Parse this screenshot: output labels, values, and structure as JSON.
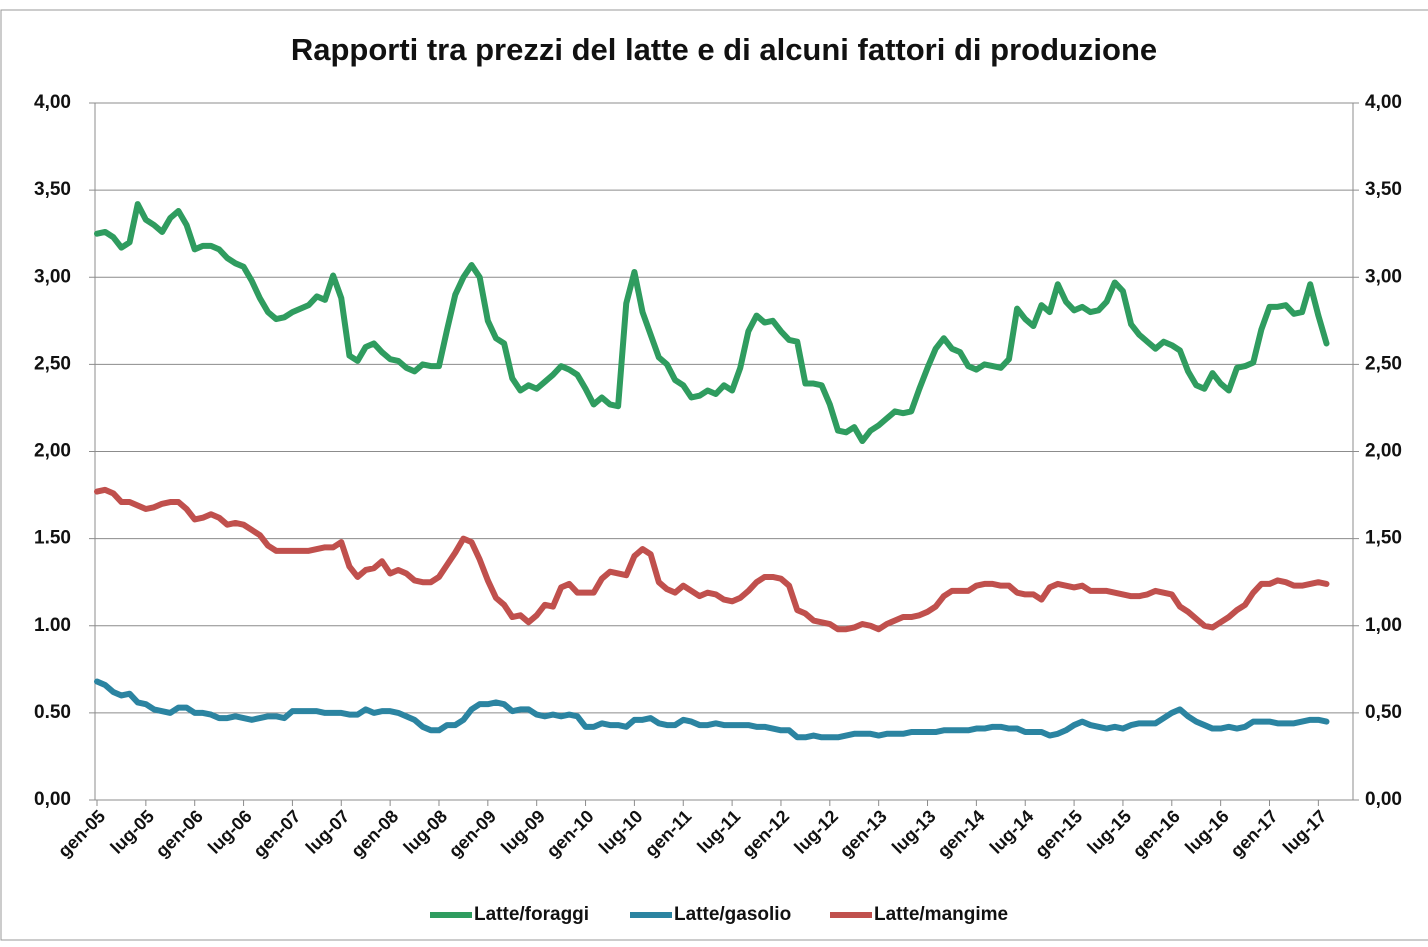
{
  "chart_data": {
    "type": "line",
    "title": "Rapporti tra prezzi del latte e di alcuni fattori di produzione",
    "categories": [
      "gen-05",
      null,
      null,
      null,
      null,
      null,
      "lug-05",
      null,
      null,
      null,
      null,
      null,
      "gen-06",
      null,
      null,
      null,
      null,
      null,
      "lug-06",
      null,
      null,
      null,
      null,
      null,
      "gen-07",
      null,
      null,
      null,
      null,
      null,
      "lug-07",
      null,
      null,
      null,
      null,
      null,
      "gen-08",
      null,
      null,
      null,
      null,
      null,
      "lug-08",
      null,
      null,
      null,
      null,
      null,
      "gen-09",
      null,
      null,
      null,
      null,
      null,
      "lug-09",
      null,
      null,
      null,
      null,
      null,
      "gen-10",
      null,
      null,
      null,
      null,
      null,
      "lug-10",
      null,
      null,
      null,
      null,
      null,
      "gen-11",
      null,
      null,
      null,
      null,
      null,
      "lug-11",
      null,
      null,
      null,
      null,
      null,
      "gen-12",
      null,
      null,
      null,
      null,
      null,
      "lug-12",
      null,
      null,
      null,
      null,
      null,
      "gen-13",
      null,
      null,
      null,
      null,
      null,
      "lug-13",
      null,
      null,
      null,
      null,
      null,
      "gen-14",
      null,
      null,
      null,
      null,
      null,
      "lug-14",
      null,
      null,
      null,
      null,
      null,
      "gen-15",
      null,
      null,
      null,
      null,
      null,
      "lug-15",
      null,
      null,
      null,
      null,
      null,
      "gen-16",
      null,
      null,
      null,
      null,
      null,
      "lug-16",
      null,
      null,
      null,
      null,
      null,
      "gen-17",
      null,
      null,
      null,
      null,
      null,
      "lug-17",
      null
    ],
    "series": [
      {
        "name": "Latte/foraggi",
        "color": "#2f9c5f",
        "values": [
          3.25,
          3.26,
          3.23,
          3.17,
          3.2,
          3.42,
          3.33,
          3.3,
          3.26,
          3.34,
          3.38,
          3.3,
          3.16,
          3.18,
          3.18,
          3.16,
          3.11,
          3.08,
          3.06,
          2.98,
          2.88,
          2.8,
          2.76,
          2.77,
          2.8,
          2.82,
          2.84,
          2.89,
          2.87,
          3.01,
          2.88,
          2.55,
          2.52,
          2.6,
          2.62,
          2.57,
          2.53,
          2.52,
          2.48,
          2.46,
          2.5,
          2.49,
          2.49,
          2.7,
          2.9,
          3.0,
          3.07,
          3.0,
          2.75,
          2.65,
          2.62,
          2.42,
          2.35,
          2.38,
          2.36,
          2.4,
          2.44,
          2.49,
          2.47,
          2.44,
          2.36,
          2.27,
          2.31,
          2.27,
          2.26,
          2.85,
          3.03,
          2.8,
          2.67,
          2.54,
          2.5,
          2.41,
          2.38,
          2.31,
          2.32,
          2.35,
          2.33,
          2.38,
          2.35,
          2.48,
          2.69,
          2.78,
          2.74,
          2.75,
          2.69,
          2.64,
          2.63,
          2.39,
          2.39,
          2.38,
          2.27,
          2.12,
          2.11,
          2.14,
          2.06,
          2.12,
          2.15,
          2.19,
          2.23,
          2.22,
          2.23,
          2.36,
          2.48,
          2.59,
          2.65,
          2.59,
          2.57,
          2.49,
          2.47,
          2.5,
          2.49,
          2.48,
          2.53,
          2.82,
          2.76,
          2.72,
          2.84,
          2.8,
          2.96,
          2.86,
          2.81,
          2.83,
          2.8,
          2.81,
          2.86,
          2.97,
          2.92,
          2.73,
          2.67,
          2.63,
          2.59,
          2.63,
          2.61,
          2.58,
          2.46,
          2.38,
          2.36,
          2.45,
          2.39,
          2.35,
          2.48,
          2.49,
          2.51,
          2.7,
          2.83,
          2.83,
          2.84,
          2.79,
          2.8,
          2.96,
          2.78,
          2.62
        ]
      },
      {
        "name": "Latte/gasolio",
        "color": "#2b84a1",
        "values": [
          0.68,
          0.66,
          0.62,
          0.6,
          0.61,
          0.56,
          0.55,
          0.52,
          0.51,
          0.5,
          0.53,
          0.53,
          0.5,
          0.5,
          0.49,
          0.47,
          0.47,
          0.48,
          0.47,
          0.46,
          0.47,
          0.48,
          0.48,
          0.47,
          0.51,
          0.51,
          0.51,
          0.51,
          0.5,
          0.5,
          0.5,
          0.49,
          0.49,
          0.52,
          0.5,
          0.51,
          0.51,
          0.5,
          0.48,
          0.46,
          0.42,
          0.4,
          0.4,
          0.43,
          0.43,
          0.46,
          0.52,
          0.55,
          0.55,
          0.56,
          0.55,
          0.51,
          0.52,
          0.52,
          0.49,
          0.48,
          0.49,
          0.48,
          0.49,
          0.48,
          0.42,
          0.42,
          0.44,
          0.43,
          0.43,
          0.42,
          0.46,
          0.46,
          0.47,
          0.44,
          0.43,
          0.43,
          0.46,
          0.45,
          0.43,
          0.43,
          0.44,
          0.43,
          0.43,
          0.43,
          0.43,
          0.42,
          0.42,
          0.41,
          0.4,
          0.4,
          0.36,
          0.36,
          0.37,
          0.36,
          0.36,
          0.36,
          0.37,
          0.38,
          0.38,
          0.38,
          0.37,
          0.38,
          0.38,
          0.38,
          0.39,
          0.39,
          0.39,
          0.39,
          0.4,
          0.4,
          0.4,
          0.4,
          0.41,
          0.41,
          0.42,
          0.42,
          0.41,
          0.41,
          0.39,
          0.39,
          0.39,
          0.37,
          0.38,
          0.4,
          0.43,
          0.45,
          0.43,
          0.42,
          0.41,
          0.42,
          0.41,
          0.43,
          0.44,
          0.44,
          0.44,
          0.47,
          0.5,
          0.52,
          0.48,
          0.45,
          0.43,
          0.41,
          0.41,
          0.42,
          0.41,
          0.42,
          0.45,
          0.45,
          0.45,
          0.44,
          0.44,
          0.44,
          0.45,
          0.46,
          0.46,
          0.45
        ]
      },
      {
        "name": "Latte/mangime",
        "color": "#c0504d",
        "values": [
          1.77,
          1.78,
          1.76,
          1.71,
          1.71,
          1.69,
          1.67,
          1.68,
          1.7,
          1.71,
          1.71,
          1.67,
          1.61,
          1.62,
          1.64,
          1.62,
          1.58,
          1.59,
          1.58,
          1.55,
          1.52,
          1.46,
          1.43,
          1.43,
          1.43,
          1.43,
          1.43,
          1.44,
          1.45,
          1.45,
          1.48,
          1.34,
          1.28,
          1.32,
          1.33,
          1.37,
          1.3,
          1.32,
          1.3,
          1.26,
          1.25,
          1.25,
          1.28,
          1.35,
          1.42,
          1.5,
          1.48,
          1.38,
          1.26,
          1.16,
          1.12,
          1.05,
          1.06,
          1.02,
          1.06,
          1.12,
          1.11,
          1.22,
          1.24,
          1.19,
          1.19,
          1.19,
          1.27,
          1.31,
          1.3,
          1.29,
          1.4,
          1.44,
          1.41,
          1.25,
          1.21,
          1.19,
          1.23,
          1.2,
          1.17,
          1.19,
          1.18,
          1.15,
          1.14,
          1.16,
          1.2,
          1.25,
          1.28,
          1.28,
          1.27,
          1.23,
          1.09,
          1.07,
          1.03,
          1.02,
          1.01,
          0.98,
          0.98,
          0.99,
          1.01,
          1.0,
          0.98,
          1.01,
          1.03,
          1.05,
          1.05,
          1.06,
          1.08,
          1.11,
          1.17,
          1.2,
          1.2,
          1.2,
          1.23,
          1.24,
          1.24,
          1.23,
          1.23,
          1.19,
          1.18,
          1.18,
          1.15,
          1.22,
          1.24,
          1.23,
          1.22,
          1.23,
          1.2,
          1.2,
          1.2,
          1.19,
          1.18,
          1.17,
          1.17,
          1.18,
          1.2,
          1.19,
          1.18,
          1.11,
          1.08,
          1.04,
          1.0,
          0.99,
          1.02,
          1.05,
          1.09,
          1.12,
          1.19,
          1.24,
          1.24,
          1.26,
          1.25,
          1.23,
          1.23,
          1.24,
          1.25,
          1.24
        ]
      }
    ],
    "ylim": [
      0,
      4
    ],
    "yticks": [
      {
        "value": 0,
        "label": "0,00"
      },
      {
        "value": 0.5,
        "label": "0.50"
      },
      {
        "value": 1,
        "label": "1.00"
      },
      {
        "value": 1.5,
        "label": "1.50"
      },
      {
        "value": 2,
        "label": "2,00"
      },
      {
        "value": 2.5,
        "label": "2,50"
      },
      {
        "value": 3,
        "label": "3,00"
      },
      {
        "value": 3.5,
        "label": "3,50"
      },
      {
        "value": 4,
        "label": "4,00"
      }
    ],
    "y2lim": [
      0,
      4
    ],
    "y2ticks": [
      {
        "value": 0,
        "label": "0,00"
      },
      {
        "value": 0.5,
        "label": "0,50"
      },
      {
        "value": 1,
        "label": "1,00"
      },
      {
        "value": 1.5,
        "label": "1,50"
      },
      {
        "value": 2,
        "label": "2,00"
      },
      {
        "value": 2.5,
        "label": "2,50"
      },
      {
        "value": 3,
        "label": "3,00"
      },
      {
        "value": 3.5,
        "label": "3,50"
      },
      {
        "value": 4,
        "label": "4,00"
      }
    ],
    "grid": true,
    "legend": "bottom"
  }
}
